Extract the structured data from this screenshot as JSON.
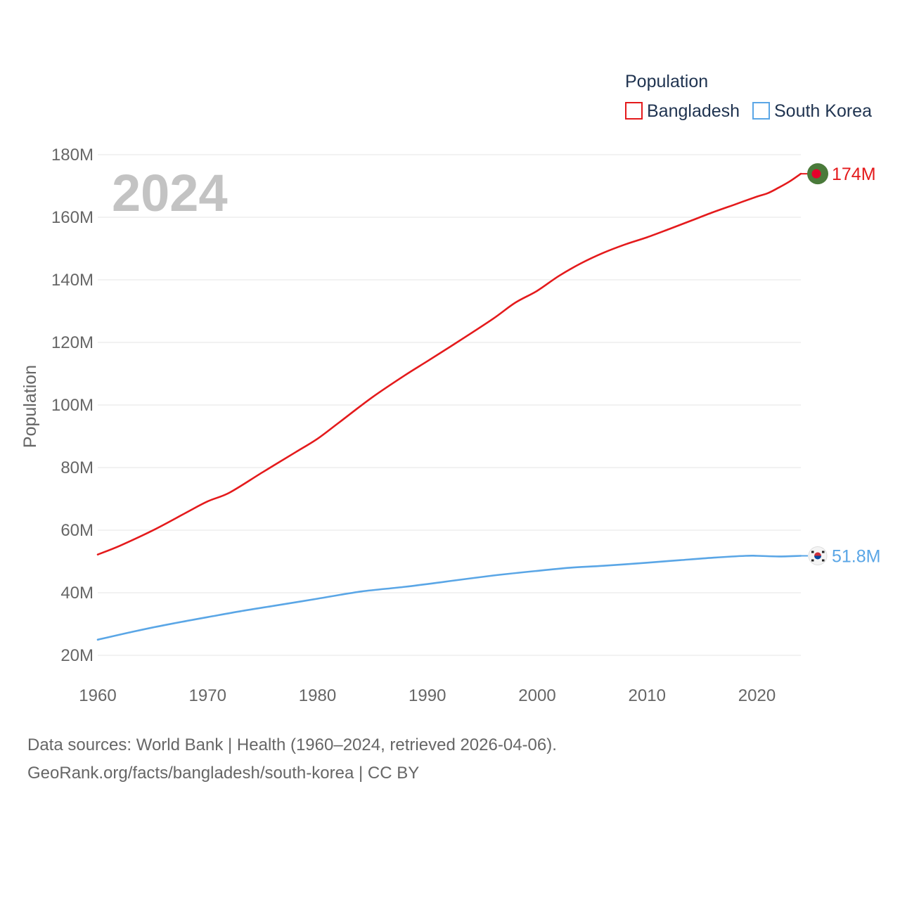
{
  "chart_data": {
    "type": "line",
    "legend_title": "Population",
    "ylabel": "Population",
    "xlabel": "",
    "year_label": "2024",
    "xlim": [
      1960,
      2024
    ],
    "ylim": [
      20,
      180
    ],
    "y_unit": "M",
    "x_ticks": [
      "1960",
      "1970",
      "1980",
      "1990",
      "2000",
      "2010",
      "2020"
    ],
    "y_ticks": [
      "20M",
      "40M",
      "60M",
      "80M",
      "100M",
      "120M",
      "140M",
      "160M",
      "180M"
    ],
    "series": [
      {
        "name": "Bangladesh",
        "color": "#e41a1c",
        "end_label": "174M",
        "flag_icon": "bangladesh-flag-icon",
        "x": [
          1960,
          1962,
          1965,
          1968,
          1970,
          1972,
          1975,
          1978,
          1980,
          1982,
          1985,
          1988,
          1990,
          1993,
          1996,
          1998,
          2000,
          2002,
          2004,
          2006,
          2008,
          2010,
          2012,
          2014,
          2016,
          2018,
          2020,
          2021,
          2022,
          2023,
          2024
        ],
        "values": [
          52.2,
          55.0,
          59.9,
          65.5,
          69.2,
          72.0,
          78.5,
          84.9,
          89.2,
          94.5,
          102.5,
          109.6,
          114.0,
          120.7,
          127.6,
          132.7,
          136.5,
          141.3,
          145.3,
          148.6,
          151.3,
          153.6,
          156.2,
          158.9,
          161.6,
          164.1,
          166.6,
          167.7,
          169.5,
          171.5,
          173.9
        ]
      },
      {
        "name": "South Korea",
        "color": "#5aa6e6",
        "end_label": "51.8M",
        "flag_icon": "south-korea-flag-icon",
        "x": [
          1960,
          1963,
          1966,
          1970,
          1973,
          1976,
          1980,
          1984,
          1988,
          1992,
          1996,
          2000,
          2003,
          2006,
          2010,
          2013,
          2016,
          2019,
          2020,
          2022,
          2024
        ],
        "values": [
          25.0,
          27.4,
          29.6,
          32.2,
          34.1,
          35.8,
          38.1,
          40.4,
          41.9,
          43.7,
          45.5,
          47.0,
          48.0,
          48.6,
          49.6,
          50.4,
          51.2,
          51.8,
          51.8,
          51.6,
          51.8
        ]
      }
    ]
  },
  "source": {
    "line1": "Data sources: World Bank | Health (1960–2024, retrieved 2026-04-06).",
    "line2": "GeoRank.org/facts/bangladesh/south-korea | CC BY"
  }
}
